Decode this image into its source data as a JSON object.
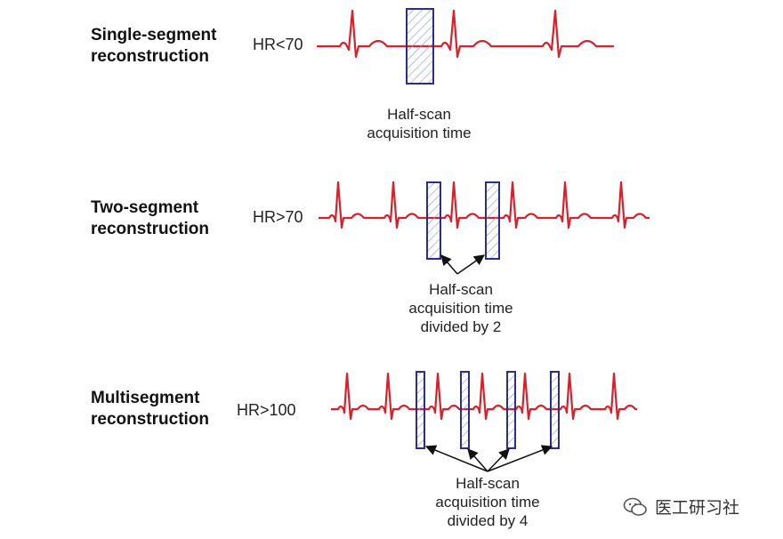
{
  "rows": [
    {
      "label_line1": "Single-segment",
      "label_line2": "reconstruction",
      "hr": "HR<70",
      "caption": [
        "Half-scan",
        "acquisition time"
      ]
    },
    {
      "label_line1": "Two-segment",
      "label_line2": "reconstruction",
      "hr": "HR>70",
      "caption": [
        "Half-scan",
        "acquisition time",
        "divided by 2"
      ]
    },
    {
      "label_line1": "Multisegment",
      "label_line2": "reconstruction",
      "hr": "HR>100",
      "caption": [
        "Half-scan",
        "acquisition time",
        "divided by 4"
      ]
    }
  ],
  "watermark": "医工研习社",
  "colors": {
    "ecg": "#d8212b",
    "window": "#2a2f8f",
    "text": "#222222"
  }
}
